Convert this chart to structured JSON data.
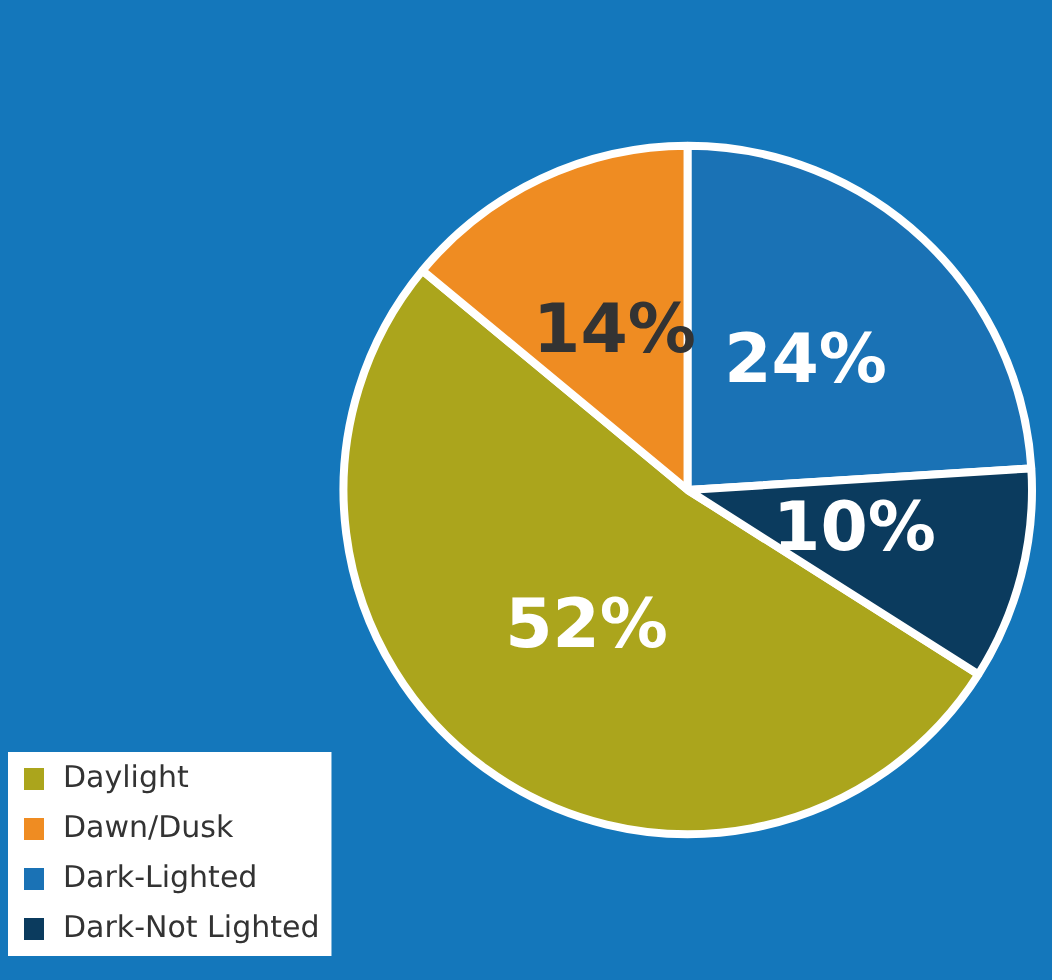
{
  "chart_data": {
    "type": "pie",
    "categories": [
      "Daylight",
      "Dawn/Dusk",
      "Dark-Lighted",
      "Dark-Not Lighted"
    ],
    "values": [
      52,
      14,
      24,
      10
    ],
    "colors": [
      "#aba51c",
      "#ef8c22",
      "#1a72b5",
      "#0b3b5e"
    ],
    "value_labels": [
      "52%",
      "14%",
      "24%",
      "10%"
    ],
    "legend": "bottom left"
  }
}
